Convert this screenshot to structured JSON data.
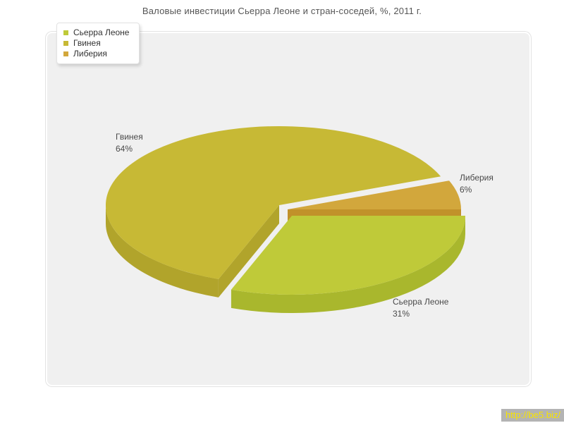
{
  "title": "Валовые инвестиции Сьерра Леоне и стран-соседей, %, 2011 г.",
  "footer_link": "http://be5.biz/",
  "panel_background": "#f0f0f0",
  "chart_data": {
    "type": "pie",
    "style": "3d-exploded",
    "title": "Валовые инвестиции Сьерра Леоне и стран-соседей, %, 2011 г.",
    "unit": "%",
    "legend_position": "top-left",
    "slices": [
      {
        "label": "Сьерра Леоне",
        "value": 31,
        "pct_label": "31%",
        "color": "#bfca39",
        "side_color": "#a9b72d"
      },
      {
        "label": "Гвинея",
        "value": 64,
        "pct_label": "64%",
        "color": "#c7b935",
        "side_color": "#b1a42b"
      },
      {
        "label": "Либерия",
        "value": 6,
        "pct_label": "6%",
        "color": "#d2a73c",
        "side_color": "#c1912a"
      }
    ]
  }
}
